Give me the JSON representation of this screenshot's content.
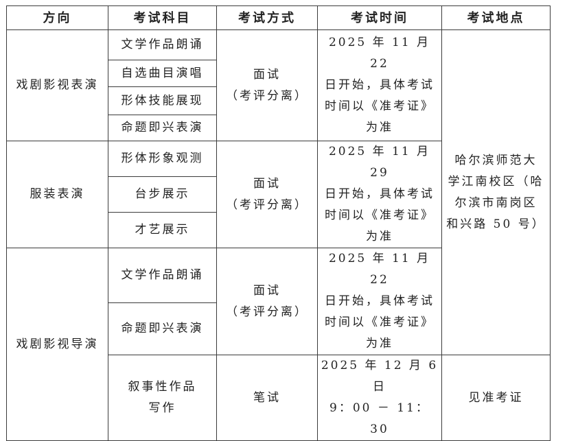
{
  "headers": [
    "方向",
    "考试科目",
    "考试方式",
    "考试时间",
    "考试地点"
  ],
  "groups": [
    {
      "direction": "戏剧影视表演",
      "subjects": [
        "文学作品朗诵",
        "自选曲目演唱",
        "形体技能展现",
        "命题即兴表演"
      ],
      "method": "面试\n（考评分离）",
      "time": "2025 年 11 月 22\n日开始，具体考试\n时间以《准考证》\n为准"
    },
    {
      "direction": "服装表演",
      "subjects": [
        "形体形象观测",
        "台步展示",
        "才艺展示"
      ],
      "method": "面试\n（考评分离）",
      "time": "2025 年 11 月 29\n日开始，具体考试\n时间以《准考证》\n为准"
    },
    {
      "direction": "戏剧影视导演",
      "subjects": [
        "文学作品朗诵",
        "命题即兴表演",
        "叙事性作品\n写作"
      ],
      "method": "面试\n（考评分离）",
      "method_written": "笔试",
      "time": "2025 年 11 月 22\n日开始，具体考试\n时间以《准考证》\n为准",
      "time_written": "2025 年 12 月 6 日\n9：00 － 11：30"
    }
  ],
  "location": "哈尔滨师范大\n学江南校区（哈\n尔滨市南岗区\n和兴路 50 号）",
  "location_written": "见准考证"
}
